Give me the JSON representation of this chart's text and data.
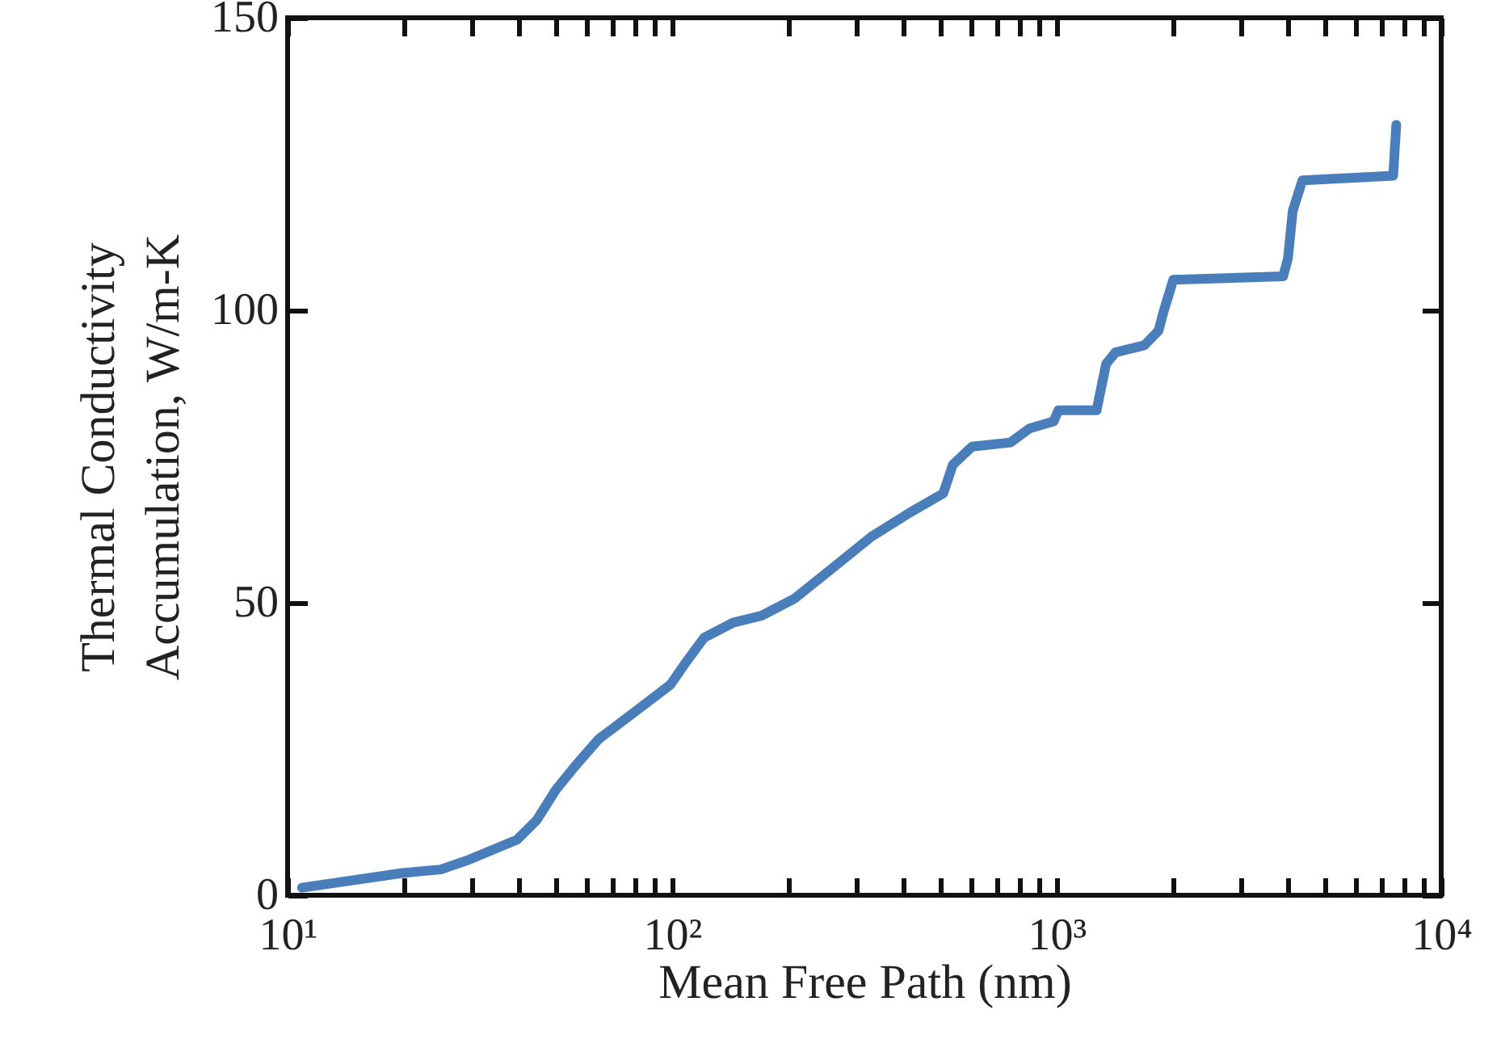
{
  "chart_data": {
    "type": "line",
    "xlabel": "Mean Free Path (nm)",
    "ylabel": "Thermal Conductivity\nAccumulation, W/m-K",
    "log": "x",
    "grid": false,
    "line_style": "solid",
    "marker": "none",
    "xlim": [
      10,
      10000
    ],
    "ylim": [
      0,
      150
    ],
    "xticks": [
      {
        "value": 10,
        "label": "10¹"
      },
      {
        "value": 20,
        "label": null
      },
      {
        "value": 30,
        "label": null
      },
      {
        "value": 40,
        "label": null
      },
      {
        "value": 50,
        "label": null
      },
      {
        "value": 60,
        "label": null
      },
      {
        "value": 70,
        "label": null
      },
      {
        "value": 80,
        "label": null
      },
      {
        "value": 90,
        "label": null
      },
      {
        "value": 100,
        "label": "10²"
      },
      {
        "value": 200,
        "label": null
      },
      {
        "value": 300,
        "label": null
      },
      {
        "value": 400,
        "label": null
      },
      {
        "value": 500,
        "label": null
      },
      {
        "value": 600,
        "label": null
      },
      {
        "value": 700,
        "label": null
      },
      {
        "value": 800,
        "label": null
      },
      {
        "value": 900,
        "label": null
      },
      {
        "value": 1000,
        "label": "10³"
      },
      {
        "value": 2000,
        "label": null
      },
      {
        "value": 3000,
        "label": null
      },
      {
        "value": 4000,
        "label": null
      },
      {
        "value": 5000,
        "label": null
      },
      {
        "value": 6000,
        "label": null
      },
      {
        "value": 7000,
        "label": null
      },
      {
        "value": 8000,
        "label": null
      },
      {
        "value": 9000,
        "label": null
      },
      {
        "value": 10000,
        "label": "10⁴"
      }
    ],
    "yticks": [
      0,
      50,
      100,
      150
    ],
    "series": [
      {
        "color": "#4a7ebb",
        "x": [
          10.9,
          19.9,
          25,
          29.7,
          39.5,
          44.4,
          49.8,
          55.8,
          64.4,
          78.7,
          99,
          108,
          121,
          144,
          171,
          208,
          262,
          330,
          415,
          507,
          537,
          603,
          758,
          850,
          982,
          1010,
          1270,
          1344,
          1422,
          1690,
          1840,
          1897,
          2010,
          3880,
          3993,
          4110,
          4355,
          7500,
          7640
        ],
        "values": [
          1.3,
          3.8,
          4.4,
          6.1,
          9.5,
          12.8,
          18,
          22,
          26.7,
          31,
          36,
          39.6,
          44,
          46.6,
          47.8,
          50.7,
          56,
          61.3,
          65.4,
          68.7,
          73.6,
          76.7,
          77.4,
          79.8,
          81,
          82.9,
          82.9,
          90.8,
          92.8,
          94,
          96.5,
          99.8,
          105.2,
          105.8,
          108.8,
          117,
          122.2,
          123,
          131.7
        ]
      }
    ]
  }
}
